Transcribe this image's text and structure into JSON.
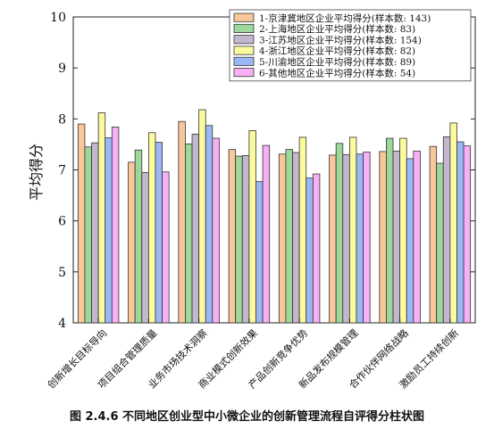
{
  "chart_data": {
    "type": "bar",
    "ylabel": "平均得分",
    "xlabel": "",
    "ylim": [
      4,
      10
    ],
    "yticks": [
      4,
      5,
      6,
      7,
      8,
      9,
      10
    ],
    "categories": [
      "创新增长目标导向",
      "项目组合管理质量",
      "业务市场技术洞察",
      "商业模式创新效果",
      "产品创新竞争优势",
      "新品发布规模管理",
      "合作伙伴网络战略",
      "激励员工持续创新"
    ],
    "series": [
      {
        "name": "1-京津冀地区企业平均得分(样本数: 143)",
        "color": "#f8c79a",
        "values": [
          7.9,
          7.15,
          7.95,
          7.4,
          7.31,
          7.29,
          7.36,
          7.46
        ]
      },
      {
        "name": "2-上海地区企业平均得分(样本数: 83)",
        "color": "#9dd79a",
        "values": [
          7.45,
          7.39,
          7.51,
          7.27,
          7.4,
          7.52,
          7.62,
          7.13
        ]
      },
      {
        "name": "3-江苏地区企业平均得分(样本数: 154)",
        "color": "#c3b6cf",
        "values": [
          7.53,
          6.95,
          7.7,
          7.28,
          7.34,
          7.3,
          7.37,
          7.65
        ]
      },
      {
        "name": "4-浙江地区企业平均得分(样本数: 82)",
        "color": "#fbfb9e",
        "values": [
          8.12,
          7.73,
          8.18,
          7.77,
          7.64,
          7.64,
          7.62,
          7.92
        ]
      },
      {
        "name": "5-川渝地区企业平均得分(样本数: 89)",
        "color": "#9ab8f6",
        "values": [
          7.63,
          7.54,
          7.87,
          6.77,
          6.84,
          7.31,
          7.22,
          7.55
        ]
      },
      {
        "name": "6-其他地区企业平均得分(样本数: 54)",
        "color": "#f6b0f4",
        "values": [
          7.84,
          6.96,
          7.62,
          7.48,
          6.92,
          7.35,
          7.37,
          7.47
        ]
      }
    ],
    "grid": false,
    "legend_position": "top-right"
  },
  "caption": "图 2.4.6  不同地区创业型中小微企业的创新管理流程自评得分柱状图"
}
